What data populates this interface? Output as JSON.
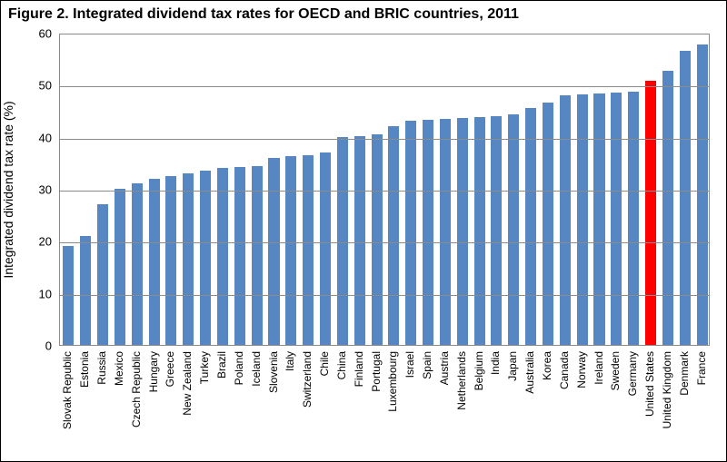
{
  "title": "Figure 2. Integrated dividend tax rates for OECD and BRIC countries, 2011",
  "chart": {
    "type": "bar",
    "ylabel": "Integrated dividend tax rate (%)",
    "ylim": [
      0,
      60
    ],
    "ytick_step": 10,
    "yticks": [
      0,
      10,
      20,
      30,
      40,
      50,
      60
    ],
    "background_color": "#ffffff",
    "grid_color": "#8b8b8b",
    "default_bar_color": "#5787c3",
    "highlight_bar_color": "#ff0000",
    "title_fontsize": 16,
    "label_fontsize": 14,
    "tick_fontsize": 13,
    "xlabel_fontsize": 12,
    "bar_width_ratio": 0.64,
    "categories": [
      "Slovak Republic",
      "Estonia",
      "Russia",
      "Mexico",
      "Czech Republic",
      "Hungary",
      "Greece",
      "New Zealand",
      "Turkey",
      "Brazil",
      "Poland",
      "Iceland",
      "Slovenia",
      "Italy",
      "Switzerland",
      "Chile",
      "China",
      "Finland",
      "Portugal",
      "Luxembourg",
      "Israel",
      "Spain",
      "Austria",
      "Netherlands",
      "Belgium",
      "India",
      "Japan",
      "Australia",
      "Korea",
      "Canada",
      "Norway",
      "Ireland",
      "Sweden",
      "Germany",
      "United States",
      "United Kingdom",
      "Denmark",
      "France"
    ],
    "values": [
      19,
      21,
      27,
      30,
      31,
      32,
      32.5,
      33,
      33.5,
      34,
      34.2,
      34.4,
      36,
      36.2,
      36.5,
      37,
      40,
      40.2,
      40.4,
      42,
      43,
      43.2,
      43.4,
      43.6,
      43.8,
      44,
      44.3,
      45.5,
      46.5,
      48,
      48.2,
      48.3,
      48.5,
      48.7,
      50.8,
      52.7,
      56.5,
      57.8
    ],
    "highlight_index": 34
  }
}
